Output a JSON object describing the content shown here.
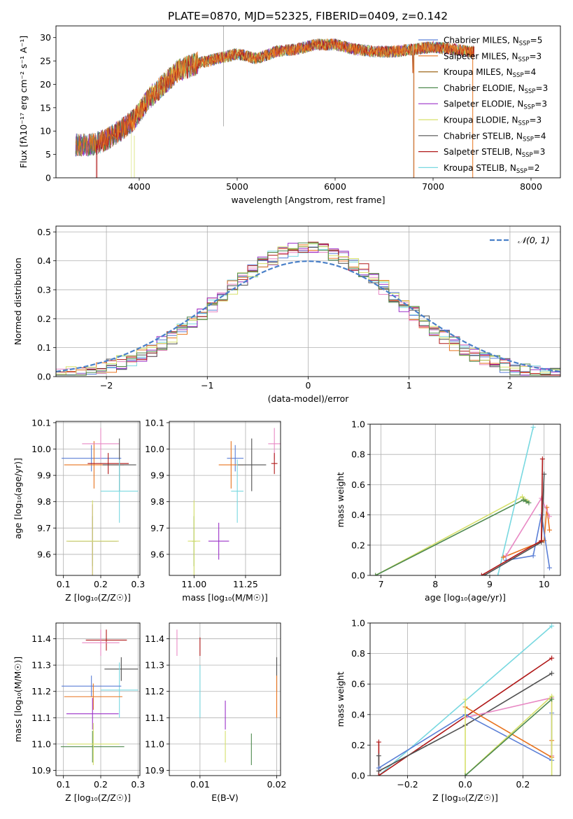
{
  "figure_title": "PLATE=0870, MJD=52325, FIBERID=0409, z=0.142",
  "colors": {
    "Chabrier MILES": "#5b7fd6",
    "Salpeter MILES": "#e8731e",
    "Kroupa MILES": "#a06a1e",
    "Chabrier ELODIE": "#4f8a4f",
    "Salpeter ELODIE": "#9b30c8",
    "Kroupa ELODIE": "#d6e06a",
    "Chabrier STELIB": "#505050",
    "Salpeter STELIB": "#b01818",
    "Kroupa STELIB": "#78d8e0",
    "pink": "#e888c4",
    "normal": "#4a80c8"
  },
  "chart_data": [
    {
      "id": "spectrum",
      "type": "line",
      "title": "PLATE=0870, MJD=52325, FIBERID=0409, z=0.142",
      "xlabel": "wavelength [Angstrom, rest frame]",
      "ylabel": "Flux [fλ10⁻¹⁷ erg cm⁻² s⁻¹ A⁻¹]",
      "xlim": [
        3150,
        8300
      ],
      "ylim": [
        0,
        32.5
      ],
      "xticks": [
        4000,
        5000,
        6000,
        7000,
        8000
      ],
      "yticks": [
        0,
        5,
        10,
        15,
        20,
        25,
        30
      ],
      "grid": false,
      "legend_position": "top-right",
      "continuum_x": [
        3350,
        3500,
        3650,
        3800,
        3950,
        4100,
        4250,
        4400,
        4600,
        4800,
        5000,
        5200,
        5400,
        5600,
        5800,
        6000,
        6200,
        6400,
        6600,
        6800,
        7000,
        7200,
        7400
      ],
      "continuum_y": [
        7.0,
        7.0,
        8.0,
        10.0,
        12.5,
        17.0,
        20.0,
        23.0,
        24.5,
        25.5,
        26.5,
        25.5,
        27.0,
        27.5,
        28.5,
        28.5,
        27.5,
        27.0,
        27.0,
        27.5,
        28.0,
        27.5,
        27.0
      ],
      "legend": [
        {
          "name": "Chabrier MILES",
          "nssp": "5"
        },
        {
          "name": "Salpeter MILES",
          "nssp": "3"
        },
        {
          "name": "Kroupa MILES",
          "nssp": "4"
        },
        {
          "name": "Chabrier ELODIE",
          "nssp": "3"
        },
        {
          "name": "Salpeter ELODIE",
          "nssp": "3"
        },
        {
          "name": "Kroupa ELODIE",
          "nssp": "3"
        },
        {
          "name": "Chabrier STELIB",
          "nssp": "4"
        },
        {
          "name": "Salpeter STELIB",
          "nssp": "3"
        },
        {
          "name": "Kroupa STELIB",
          "nssp": "2"
        }
      ]
    },
    {
      "id": "residuals",
      "type": "line",
      "xlabel": "(data-model)/error",
      "ylabel": "Normed distribution",
      "xlim": [
        -2.5,
        2.5
      ],
      "ylim": [
        0,
        0.52
      ],
      "xticks": [
        -2,
        -1,
        0,
        1,
        2
      ],
      "yticks": [
        0.0,
        0.1,
        0.2,
        0.3,
        0.4,
        0.5
      ],
      "grid": true,
      "legend_position": "top-right",
      "legend": [
        {
          "name": "𝒩(0, 1)"
        }
      ],
      "bin_width": 0.1
    },
    {
      "id": "age_vs_Z",
      "type": "scatter",
      "xlabel": "Z [log₁₀(Z/Z☉)]",
      "ylabel": "age  [log₁₀(age/yr)]",
      "xlim": [
        0.08,
        0.305
      ],
      "ylim": [
        9.52,
        10.105
      ],
      "xticks": [
        0.1,
        0.2,
        0.3
      ],
      "yticks": [
        9.6,
        9.7,
        9.8,
        9.9,
        10.0,
        10.1
      ],
      "grid": true,
      "points": [
        {
          "c": "Chabrier MILES",
          "x": 0.175,
          "xe": 0.08,
          "y": 9.965,
          "ye": 0.05
        },
        {
          "c": "Salpeter MILES",
          "x": 0.182,
          "xe": 0.08,
          "y": 9.94,
          "ye": 0.09
        },
        {
          "c": "pink",
          "x": 0.2,
          "xe": 0.05,
          "y": 10.02,
          "ye": 0.06
        },
        {
          "c": "Salpeter STELIB",
          "x": 0.22,
          "xe": 0.055,
          "y": 9.945,
          "ye": 0.04
        },
        {
          "c": "Chabrier STELIB",
          "x": 0.25,
          "xe": 0.045,
          "y": 9.94,
          "ye": 0.1
        },
        {
          "c": "Kroupa STELIB",
          "x": 0.25,
          "xe": 0.05,
          "y": 9.84,
          "ye": 0.12
        },
        {
          "c": "Chabrier ELODIE",
          "x": 0.178,
          "xe": 0.065,
          "y": 9.65,
          "ye": 0.095
        },
        {
          "c": "Salpeter ELODIE",
          "x": 0.178,
          "xe": 0.07,
          "y": 9.65,
          "ye": 0.14
        },
        {
          "c": "Kroupa ELODIE",
          "x": 0.178,
          "xe": 0.07,
          "y": 9.65,
          "ye": 0.155
        }
      ]
    },
    {
      "id": "age_vs_mass",
      "type": "scatter",
      "xlabel": "mass [log₁₀(M/M☉)]",
      "ylabel": "",
      "xlim": [
        10.88,
        11.42
      ],
      "ylim": [
        9.52,
        10.105
      ],
      "xticks": [
        11.0,
        11.25
      ],
      "yticks": [
        9.6,
        9.7,
        9.8,
        9.9,
        10.0,
        10.1
      ],
      "grid": true,
      "points": [
        {
          "c": "Chabrier MILES",
          "x": 11.2,
          "xe": 0.04,
          "y": 9.965,
          "ye": 0.05
        },
        {
          "c": "Salpeter MILES",
          "x": 11.18,
          "xe": 0.06,
          "y": 9.94,
          "ye": 0.09
        },
        {
          "c": "pink",
          "x": 11.39,
          "xe": 0.03,
          "y": 10.02,
          "ye": 0.06
        },
        {
          "c": "Salpeter STELIB",
          "x": 11.39,
          "xe": 0.015,
          "y": 9.945,
          "ye": 0.04
        },
        {
          "c": "Chabrier STELIB",
          "x": 11.28,
          "xe": 0.07,
          "y": 9.94,
          "ye": 0.1
        },
        {
          "c": "Kroupa STELIB",
          "x": 11.21,
          "xe": 0.03,
          "y": 9.84,
          "ye": 0.12
        },
        {
          "c": "Chabrier ELODIE",
          "x": 11.0,
          "xe": 0.01,
          "y": 9.65,
          "ye": 0.095
        },
        {
          "c": "Salpeter ELODIE",
          "x": 11.12,
          "xe": 0.05,
          "y": 9.65,
          "ye": 0.07
        },
        {
          "c": "Kroupa ELODIE",
          "x": 11.0,
          "xe": 0.03,
          "y": 9.65,
          "ye": 0.155
        }
      ]
    },
    {
      "id": "mass_weight_vs_age",
      "type": "line",
      "xlabel": "age  [log₁₀(age/yr)]",
      "ylabel": "mass weight",
      "xlim": [
        6.8,
        10.3
      ],
      "ylim": [
        0,
        1.0
      ],
      "xticks": [
        7,
        8,
        9,
        10
      ],
      "yticks": [
        0.0,
        0.2,
        0.4,
        0.6,
        0.8,
        1.0
      ],
      "grid": true,
      "series": [
        {
          "c": "Kroupa ELODIE",
          "x": [
            6.9,
            9.6,
            9.65,
            9.7
          ],
          "y": [
            0.0,
            0.52,
            0.5,
            0.49
          ]
        },
        {
          "c": "Chabrier ELODIE",
          "x": [
            6.9,
            9.62,
            9.67,
            9.72
          ],
          "y": [
            0.0,
            0.5,
            0.49,
            0.48
          ]
        },
        {
          "c": "Kroupa STELIB",
          "x": [
            9.15,
            9.8
          ],
          "y": [
            0.0,
            0.98
          ]
        },
        {
          "c": "Salpeter MILES",
          "x": [
            9.25,
            10.0,
            10.05,
            10.1
          ],
          "y": [
            0.12,
            0.23,
            0.45,
            0.3
          ]
        },
        {
          "c": "Chabrier MILES",
          "x": [
            9.3,
            9.8,
            9.95,
            10.1
          ],
          "y": [
            0.1,
            0.13,
            0.4,
            0.05
          ]
        },
        {
          "c": "pink",
          "x": [
            9.3,
            9.95,
            10.1
          ],
          "y": [
            0.13,
            0.51,
            0.39
          ]
        },
        {
          "c": "Chabrier STELIB",
          "x": [
            8.9,
            9.95,
            10.0
          ],
          "y": [
            0.0,
            0.22,
            0.67
          ]
        },
        {
          "c": "Salpeter STELIB",
          "x": [
            8.85,
            9.95,
            9.97
          ],
          "y": [
            0.0,
            0.23,
            0.77
          ]
        }
      ]
    },
    {
      "id": "mass_vs_Z",
      "type": "scatter",
      "xlabel": "Z [log₁₀(Z/Z☉)]",
      "ylabel": "mass [log₁₀(M/M☉)]",
      "xlim": [
        0.08,
        0.305
      ],
      "ylim": [
        10.88,
        11.46
      ],
      "xticks": [
        0.1,
        0.2,
        0.3
      ],
      "yticks": [
        10.9,
        11.0,
        11.1,
        11.2,
        11.3,
        11.4
      ],
      "grid": true,
      "points": [
        {
          "c": "Salpeter STELIB",
          "x": 0.215,
          "xe": 0.055,
          "y": 11.395,
          "ye": 0.04
        },
        {
          "c": "pink",
          "x": 0.2,
          "xe": 0.05,
          "y": 11.385,
          "ye": 0.05
        },
        {
          "c": "Chabrier STELIB",
          "x": 0.255,
          "xe": 0.045,
          "y": 11.285,
          "ye": 0.045
        },
        {
          "c": "Kroupa STELIB",
          "x": 0.25,
          "xe": 0.05,
          "y": 11.205,
          "ye": 0.105
        },
        {
          "c": "Chabrier MILES",
          "x": 0.175,
          "xe": 0.08,
          "y": 11.22,
          "ye": 0.04
        },
        {
          "c": "Salpeter MILES",
          "x": 0.18,
          "xe": 0.078,
          "y": 11.18,
          "ye": 0.05
        },
        {
          "c": "Salpeter ELODIE",
          "x": 0.178,
          "xe": 0.07,
          "y": 11.115,
          "ye": 0.06
        },
        {
          "c": "Chabrier ELODIE",
          "x": 0.178,
          "xe": 0.085,
          "y": 10.99,
          "ye": 0.06
        },
        {
          "c": "Kroupa ELODIE",
          "x": 0.18,
          "xe": 0.07,
          "y": 11.0,
          "ye": 0.08
        }
      ]
    },
    {
      "id": "mass_vs_ebv",
      "type": "scatter",
      "xlabel": "E(B-V)",
      "ylabel": "",
      "xlim": [
        0.006,
        0.0205
      ],
      "ylim": [
        10.88,
        11.46
      ],
      "xticks": [
        0.01,
        0.02
      ],
      "yticks": [
        10.9,
        11.0,
        11.1,
        11.2,
        11.3,
        11.4
      ],
      "grid": true,
      "points": [
        {
          "c": "pink",
          "x": 0.007,
          "xe": 0.0,
          "y": 11.385,
          "ye": 0.05
        },
        {
          "c": "Salpeter STELIB",
          "x": 0.01,
          "xe": 0.0,
          "y": 11.37,
          "ye": 0.035
        },
        {
          "c": "Kroupa STELIB",
          "x": 0.01,
          "xe": 0.0,
          "y": 11.2,
          "ye": 0.1
        },
        {
          "c": "Salpeter ELODIE",
          "x": 0.0133,
          "xe": 0.0,
          "y": 11.11,
          "ye": 0.055
        },
        {
          "c": "Kroupa ELODIE",
          "x": 0.0133,
          "xe": 0.0,
          "y": 10.99,
          "ye": 0.06
        },
        {
          "c": "Chabrier ELODIE",
          "x": 0.0167,
          "xe": 0.0,
          "y": 10.98,
          "ye": 0.06
        },
        {
          "c": "Chabrier STELIB",
          "x": 0.02,
          "xe": 0.0,
          "y": 11.265,
          "ye": 0.065
        },
        {
          "c": "Salpeter MILES",
          "x": 0.02,
          "xe": 0.0,
          "y": 11.18,
          "ye": 0.08
        }
      ]
    },
    {
      "id": "mass_weight_vs_Z",
      "type": "line",
      "xlabel": "Z [log₁₀(Z/Z☉)]",
      "ylabel": "mass weight",
      "xlim": [
        -0.33,
        0.33
      ],
      "ylim": [
        0,
        1.0
      ],
      "xticks": [
        -0.2,
        0.0,
        0.2
      ],
      "yticks": [
        0.0,
        0.2,
        0.4,
        0.6,
        0.8,
        1.0
      ],
      "grid": true,
      "series": [
        {
          "c": "Kroupa STELIB",
          "x": [
            -0.3,
            0.3
          ],
          "y": [
            0.0,
            0.98
          ]
        },
        {
          "c": "Salpeter STELIB",
          "x": [
            -0.3,
            -0.3,
            0.3
          ],
          "y": [
            0.22,
            0.0,
            0.77
          ]
        },
        {
          "c": "Chabrier STELIB",
          "x": [
            -0.3,
            -0.3,
            0.0,
            0.3
          ],
          "y": [
            0.13,
            0.03,
            0.33,
            0.67
          ]
        },
        {
          "c": "pink",
          "x": [
            0.0,
            0.3,
            0.3
          ],
          "y": [
            0.38,
            0.51,
            0.13
          ]
        },
        {
          "c": "Chabrier MILES",
          "x": [
            -0.3,
            0.0,
            0.3,
            0.3
          ],
          "y": [
            0.05,
            0.4,
            0.1,
            0.41
          ]
        },
        {
          "c": "Salpeter MILES",
          "x": [
            0.0,
            0.3,
            0.3
          ],
          "y": [
            0.45,
            0.12,
            0.23
          ]
        },
        {
          "c": "Kroupa ELODIE",
          "x": [
            0.0,
            0.0,
            0.3,
            0.3
          ],
          "y": [
            0.5,
            0.0,
            0.52,
            0.0
          ]
        },
        {
          "c": "Chabrier ELODIE",
          "x": [
            0.0,
            0.3
          ],
          "y": [
            0.0,
            0.5
          ]
        }
      ]
    }
  ]
}
